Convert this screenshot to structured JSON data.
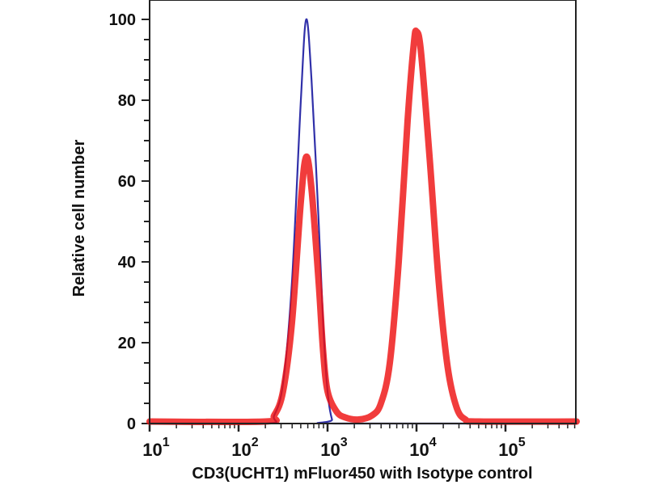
{
  "chart_data": {
    "type": "line",
    "title": "",
    "xlabel": "CD3(UCHT1) mFluor450 with Isotype control",
    "ylabel": "Relative cell number",
    "xscale": "log10",
    "xlim_log10": [
      1,
      5.8
    ],
    "ylim": [
      0,
      105
    ],
    "yticks": [
      0,
      20,
      40,
      60,
      80,
      100
    ],
    "xticks": [
      {
        "base": "10",
        "exp": "1",
        "log10": 1
      },
      {
        "base": "10",
        "exp": "2",
        "log10": 2
      },
      {
        "base": "10",
        "exp": "3",
        "log10": 3
      },
      {
        "base": "10",
        "exp": "4",
        "log10": 4
      },
      {
        "base": "10",
        "exp": "5",
        "log10": 5
      }
    ],
    "grid": false,
    "series": [
      {
        "name": "Isotype control",
        "color": "#1a1aa0",
        "x_log10": [
          1.0,
          2.3,
          2.4,
          2.5,
          2.6,
          2.7,
          2.76,
          2.82,
          2.9,
          2.95,
          3.0,
          3.05,
          3.1,
          5.8
        ],
        "y": [
          0,
          0,
          2,
          10,
          35,
          80,
          100,
          85,
          50,
          25,
          8,
          1,
          0,
          0
        ]
      },
      {
        "name": "CD3(UCHT1) mFluor450",
        "color": "#ee1111",
        "x_log10": [
          1.0,
          2.3,
          2.4,
          2.5,
          2.6,
          2.7,
          2.76,
          2.82,
          2.9,
          2.95,
          3.0,
          3.1,
          3.2,
          3.35,
          3.5,
          3.6,
          3.7,
          3.8,
          3.9,
          3.97,
          4.0,
          4.05,
          4.15,
          4.25,
          4.35,
          4.45,
          4.55,
          4.7,
          5.8
        ],
        "y": [
          0.5,
          0.5,
          2,
          8,
          25,
          55,
          66,
          58,
          35,
          18,
          8,
          3,
          1.5,
          1,
          2,
          5,
          15,
          40,
          75,
          94,
          97,
          92,
          65,
          35,
          14,
          4,
          1,
          0.5,
          0.5
        ]
      }
    ]
  }
}
